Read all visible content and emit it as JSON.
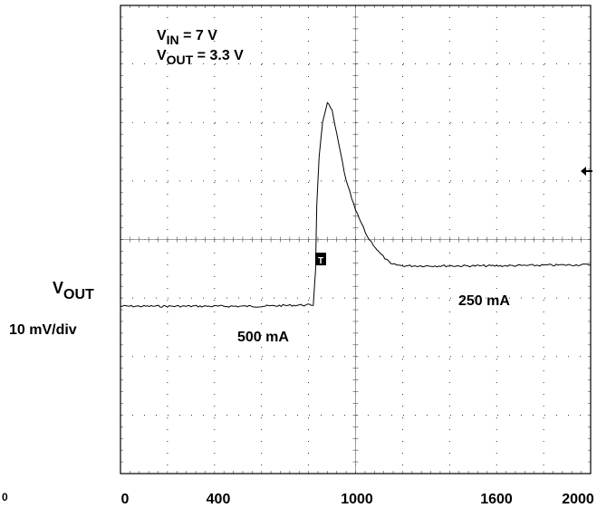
{
  "chart_data": {
    "type": "line",
    "x_ticks": [
      "0",
      "400",
      "1000",
      "1600",
      "2000"
    ],
    "corner_label": "0",
    "xlim": [
      0,
      2000
    ],
    "grid": true,
    "annotations": {
      "vin_sym": "V",
      "vin_sub": "IN",
      "vin_rest": " = 7 V",
      "vout_sym": "V",
      "vout_sub": "OUT",
      "vout_rest": " = 3.3 V",
      "channel_sym": "V",
      "channel_sub": "OUT",
      "scale": "10 mV/div",
      "load_before": "500 mA",
      "load_after": "250 mA",
      "trigger_marker": "T"
    },
    "series": [
      {
        "x": [
          0,
          200,
          400,
          600,
          760,
          820,
          830,
          835,
          845,
          860,
          880,
          900,
          920,
          960,
          1000,
          1050,
          1100,
          1150,
          1200,
          1300,
          1400,
          1600,
          1800,
          2000
        ],
        "y": [
          -1.14,
          -1.14,
          -1.14,
          -1.14,
          -1.12,
          -1.12,
          -0.5,
          0.6,
          1.4,
          2.0,
          2.35,
          2.2,
          1.8,
          1.0,
          0.5,
          0.05,
          -0.22,
          -0.42,
          -0.45,
          -0.45,
          -0.45,
          -0.45,
          -0.44,
          -0.43
        ]
      }
    ]
  }
}
